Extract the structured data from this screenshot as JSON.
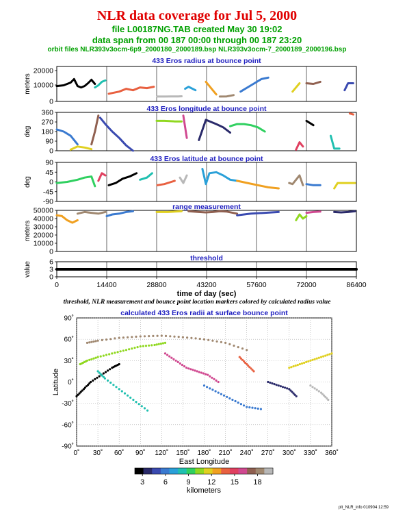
{
  "header": {
    "title": "NLR data coverage for Jul 5, 2000",
    "file_line": "file L00187NG.TAB created May 30 19:02",
    "span_line": "data span from 00 187 00:00 through 00 187 23:20",
    "orbit_line": "orbit files NLR393v3ocm-6p9_2000180_2000189.bsp NLR393v3ocm-7_2000189_2000196.bsp"
  },
  "caption": "threshold, NLR measurement and bounce point location markers colored by calculated radius value",
  "footer": "plt_NLR_info 010904 12:59",
  "colors": {
    "title": "#e00000",
    "subtitle": "#00a000",
    "panel_title": "#2020c0",
    "colorbar": [
      "#000000",
      "#2a2a6a",
      "#3a4ab0",
      "#3a7ad0",
      "#2aa0d8",
      "#20c0b0",
      "#30d060",
      "#90d820",
      "#e0d020",
      "#f0a020",
      "#e86040",
      "#e04060",
      "#d04890",
      "#906050",
      "#a08870",
      "#b8b8b8"
    ]
  },
  "chart_data": [
    {
      "type": "line",
      "title": "433 Eros radius at bounce point",
      "ylabel": "meters",
      "ylim": [
        0,
        25000
      ],
      "yticks": [
        "20000",
        "10000",
        "0"
      ],
      "xlim": [
        0,
        86400
      ],
      "xticks": [],
      "note": "colored by calculated radius",
      "segments": [
        {
          "x": [
            0,
            2000,
            4000,
            5000,
            6000,
            7000,
            8000,
            9000,
            10000,
            11000
          ],
          "y": [
            11000,
            11500,
            13500,
            16000,
            11000,
            10000,
            11000,
            13000,
            15500,
            12500
          ]
        },
        {
          "x": [
            11000,
            12000,
            13000,
            14000
          ],
          "y": [
            10000,
            11500,
            14000,
            15000
          ]
        },
        {
          "x": [
            15000,
            18000,
            20000,
            22000,
            24000,
            26000,
            28000
          ],
          "y": [
            5500,
            7000,
            9000,
            8000,
            10000,
            9500,
            10500
          ]
        },
        {
          "x": [
            29000,
            31000,
            33000,
            35000,
            36000
          ],
          "y": [
            3500,
            3500,
            3600,
            3600,
            3700
          ]
        },
        {
          "x": [
            37000,
            38000,
            40000
          ],
          "y": [
            9000,
            10500,
            8000
          ]
        },
        {
          "x": [
            43000,
            44000,
            45000,
            46000
          ],
          "y": [
            14000,
            11000,
            8000,
            5000
          ]
        },
        {
          "x": [
            47000,
            49000,
            51000
          ],
          "y": [
            3500,
            3600,
            4500
          ]
        },
        {
          "x": [
            53000,
            55000,
            57000,
            59000,
            61000
          ],
          "y": [
            7000,
            10000,
            13000,
            16000,
            17000
          ]
        },
        {
          "x": [
            68000,
            69000,
            70000
          ],
          "y": [
            7000,
            10000,
            13000
          ]
        },
        {
          "x": [
            72000,
            74000,
            76000
          ],
          "y": [
            13000,
            12500,
            14000
          ]
        },
        {
          "x": [
            83000,
            84000,
            85500
          ],
          "y": [
            8000,
            13000,
            13000
          ]
        }
      ]
    },
    {
      "type": "line",
      "title": "433 Eros longitude at bounce point",
      "ylabel": "deg",
      "ylim": [
        0,
        360
      ],
      "yticks": [
        "360",
        "270",
        "180",
        "90",
        "0"
      ],
      "xlim": [
        0,
        86400
      ],
      "xticks": [],
      "segments": [
        {
          "x": [
            0,
            2000,
            4000,
            6000
          ],
          "y": [
            200,
            180,
            140,
            60
          ]
        },
        {
          "x": [
            4000,
            6000,
            8000,
            10000
          ],
          "y": [
            10,
            40,
            30,
            15
          ]
        },
        {
          "x": [
            10000,
            11000,
            12000
          ],
          "y": [
            60,
            180,
            330
          ]
        },
        {
          "x": [
            12500,
            14000,
            16000,
            18000,
            20000,
            22000
          ],
          "y": [
            310,
            250,
            180,
            120,
            50,
            0
          ]
        },
        {
          "x": [
            28800,
            31000,
            34000,
            36000
          ],
          "y": [
            280,
            280,
            275,
            275
          ]
        },
        {
          "x": [
            36500,
            37500
          ],
          "y": [
            330,
            120
          ]
        },
        {
          "x": [
            41000,
            43000,
            46000,
            48000,
            50000
          ],
          "y": [
            100,
            290,
            250,
            220,
            170
          ]
        },
        {
          "x": [
            50000,
            52000,
            54000,
            56000,
            58000,
            60000
          ],
          "y": [
            230,
            250,
            250,
            240,
            220,
            180
          ]
        },
        {
          "x": [
            69000,
            70000,
            71000
          ],
          "y": [
            10,
            80,
            40
          ]
        },
        {
          "x": [
            72000,
            74000
          ],
          "y": [
            280,
            240
          ]
        },
        {
          "x": [
            79000,
            80000,
            81500
          ],
          "y": [
            140,
            20,
            20
          ]
        },
        {
          "x": [
            84500,
            85500
          ],
          "y": [
            350,
            340
          ]
        }
      ]
    },
    {
      "type": "line",
      "title": "433 Eros latitude at bounce point",
      "ylabel": "deg",
      "ylim": [
        -90,
        90
      ],
      "yticks": [
        "90",
        "45",
        "0",
        "-45",
        "-90"
      ],
      "xlim": [
        0,
        86400
      ],
      "xticks": [],
      "segments": [
        {
          "x": [
            0,
            3000,
            6000,
            8000,
            10000,
            11000
          ],
          "y": [
            -5,
            0,
            10,
            20,
            25,
            -20
          ]
        },
        {
          "x": [
            12000,
            13000,
            14000
          ],
          "y": [
            5,
            40,
            30
          ]
        },
        {
          "x": [
            15000,
            17000,
            19000,
            21000,
            23000
          ],
          "y": [
            -15,
            -5,
            15,
            25,
            40
          ]
        },
        {
          "x": [
            24000,
            26000,
            27500
          ],
          "y": [
            10,
            20,
            40
          ]
        },
        {
          "x": [
            29000,
            31000,
            33000,
            34000
          ],
          "y": [
            -15,
            -10,
            0,
            5
          ]
        },
        {
          "x": [
            35500,
            36500,
            37500
          ],
          "y": [
            20,
            -5,
            30
          ]
        },
        {
          "x": [
            42000,
            43000,
            44000,
            46000,
            48000,
            50000,
            52000
          ],
          "y": [
            60,
            -10,
            40,
            45,
            30,
            10,
            5
          ]
        },
        {
          "x": [
            52000,
            55000,
            58000,
            61000,
            64000
          ],
          "y": [
            5,
            -5,
            -15,
            -25,
            -30
          ]
        },
        {
          "x": [
            67000,
            68000,
            69000,
            70000,
            71000
          ],
          "y": [
            -5,
            -10,
            10,
            30,
            -15
          ]
        },
        {
          "x": [
            72000,
            74000,
            76000
          ],
          "y": [
            -10,
            -15,
            -15
          ]
        },
        {
          "x": [
            80000,
            81000,
            82000,
            86000
          ],
          "y": [
            -30,
            -5,
            -5,
            -5
          ]
        }
      ]
    },
    {
      "type": "line",
      "title": "range measurement",
      "ylabel": "meters",
      "ylim": [
        0,
        50000
      ],
      "yticks": [
        "50000",
        "40000",
        "30000",
        "20000",
        "10000",
        "0"
      ],
      "xlim": [
        0,
        86400
      ],
      "xticks": [],
      "segments": [
        {
          "x": [
            0,
            1500,
            3000,
            4500,
            6000
          ],
          "y": [
            44000,
            43000,
            38000,
            35000,
            38000
          ]
        },
        {
          "x": [
            6000,
            8000,
            10000,
            12000,
            14000
          ],
          "y": [
            46000,
            48000,
            47000,
            46000,
            48000
          ]
        },
        {
          "x": [
            14400,
            16000,
            18000,
            20000,
            22000
          ],
          "y": [
            43000,
            45000,
            46000,
            48000,
            49000
          ]
        },
        {
          "x": [
            28800,
            32000,
            36000
          ],
          "y": [
            48000,
            48000,
            49000
          ]
        },
        {
          "x": [
            38000,
            41000,
            43000,
            45000,
            47000,
            49000,
            52000
          ],
          "y": [
            49000,
            48000,
            47500,
            48000,
            49000,
            48500,
            46000
          ]
        },
        {
          "x": [
            52000,
            56000,
            60000,
            64000
          ],
          "y": [
            44000,
            46000,
            47000,
            48000
          ]
        },
        {
          "x": [
            69000,
            70000,
            71000,
            72000
          ],
          "y": [
            38000,
            45000,
            40000,
            43000
          ]
        },
        {
          "x": [
            72000,
            74000,
            76000
          ],
          "y": [
            47000,
            48000,
            48500
          ]
        },
        {
          "x": [
            80000,
            82000,
            84000,
            86000
          ],
          "y": [
            48000,
            47500,
            48000,
            49000
          ]
        }
      ]
    },
    {
      "type": "scatter",
      "title": "threshold",
      "ylabel": "value",
      "ylim": [
        0,
        6
      ],
      "yticks": [
        "6",
        "3",
        "0"
      ],
      "xlim": [
        0,
        86400
      ],
      "xticks": [
        "0",
        "14400",
        "28800",
        "43200",
        "57600",
        "72000",
        "86400"
      ],
      "xlabel": "time of day (sec)",
      "segments": [
        {
          "x": [
            0,
            86400
          ],
          "y": [
            3,
            3
          ]
        }
      ]
    },
    {
      "type": "scatter",
      "title": "calculated 433 Eros radii at surface bounce point",
      "xlabel": "East Longitude",
      "ylabel": "Latitude",
      "xlim": [
        0,
        360
      ],
      "ylim": [
        -90,
        90
      ],
      "xticks": [
        "0˚",
        "30˚",
        "60˚",
        "90˚",
        "120˚",
        "150˚",
        "180˚",
        "210˚",
        "240˚",
        "270˚",
        "300˚",
        "330˚",
        "360˚"
      ],
      "yticks": [
        "90˚",
        "60˚",
        "30˚",
        "0˚",
        "-30˚",
        "-60˚",
        "-90˚"
      ],
      "colorbar_label": "kilometers",
      "colorbar_ticks": [
        "3",
        "6",
        "9",
        "12",
        "15",
        "18"
      ],
      "colorbar_range": [
        2,
        20
      ],
      "tracks": [
        {
          "lon": [
            0,
            10,
            20,
            35,
            50,
            60
          ],
          "lat": [
            -20,
            -10,
            0,
            10,
            20,
            25
          ]
        },
        {
          "lon": [
            5,
            15,
            30,
            50,
            70,
            90,
            110,
            125
          ],
          "lat": [
            25,
            30,
            35,
            40,
            45,
            50,
            52,
            55
          ]
        },
        {
          "lon": [
            15,
            30,
            60,
            90,
            120,
            150,
            180,
            210,
            240
          ],
          "lat": [
            55,
            58,
            62,
            64,
            65,
            63,
            60,
            55,
            45
          ]
        },
        {
          "lon": [
            30,
            40,
            60,
            80,
            100
          ],
          "lat": [
            15,
            5,
            -10,
            -25,
            -40
          ]
        },
        {
          "lon": [
            125,
            140,
            155,
            170,
            185,
            200
          ],
          "lat": [
            40,
            30,
            20,
            15,
            10,
            0
          ]
        },
        {
          "lon": [
            180,
            200,
            220,
            240,
            260
          ],
          "lat": [
            -5,
            -15,
            -25,
            -35,
            -38
          ]
        },
        {
          "lon": [
            230,
            240,
            250
          ],
          "lat": [
            35,
            25,
            15
          ]
        },
        {
          "lon": [
            270,
            285,
            300,
            310
          ],
          "lat": [
            0,
            -5,
            -10,
            -20
          ]
        },
        {
          "lon": [
            300,
            315,
            330,
            345,
            360
          ],
          "lat": [
            20,
            25,
            30,
            35,
            40
          ]
        },
        {
          "lon": [
            330,
            345,
            355
          ],
          "lat": [
            -5,
            -15,
            -25
          ]
        }
      ]
    }
  ]
}
